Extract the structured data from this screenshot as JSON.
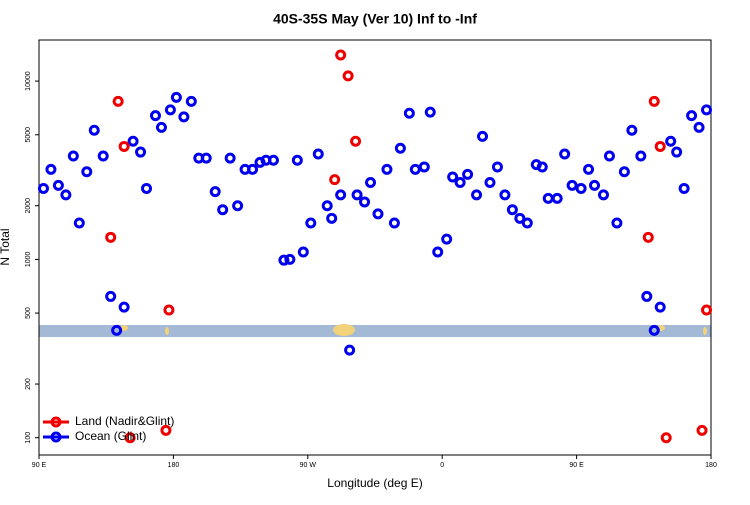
{
  "chart_data": {
    "type": "scatter",
    "title": "40S-35S May (Ver 10)   Inf to -Inf",
    "x_label": "Longitude (deg E)",
    "y_label": "N Total",
    "xlim": [
      90,
      540
    ],
    "xticks": [
      {
        "value": 90,
        "label": "90 E"
      },
      {
        "value": 180,
        "label": "180"
      },
      {
        "value": 270,
        "label": "90 W"
      },
      {
        "value": 360,
        "label": "0"
      },
      {
        "value": 450,
        "label": "90 E"
      },
      {
        "value": 540,
        "label": "180"
      }
    ],
    "ylim": [
      80,
      17000
    ],
    "yticks": [
      100,
      200,
      500,
      1000,
      2000,
      5000,
      10000
    ],
    "log_y": true,
    "legend": "bottom-left",
    "series": [
      {
        "name": "Land (Nadir&Glint)",
        "color": "#ee0000",
        "x": [
          138,
          143,
          147,
          151,
          175,
          177,
          288,
          292,
          297,
          302,
          498,
          502,
          506,
          510,
          534,
          537
        ],
        "values": [
          1330,
          7700,
          4300,
          100,
          110,
          520,
          2800,
          14000,
          10700,
          4600,
          1330,
          7700,
          4300,
          100,
          110,
          520
        ]
      },
      {
        "name": "Ocean (Glint)",
        "color": "#0000ee",
        "x": [
          93,
          98,
          103,
          108,
          113,
          117,
          122,
          127,
          133,
          138,
          142,
          147,
          153,
          158,
          162,
          168,
          172,
          178,
          182,
          187,
          192,
          197,
          202,
          208,
          213,
          218,
          223,
          228,
          233,
          238,
          242,
          247,
          254,
          258,
          263,
          267,
          272,
          277,
          283,
          286,
          292,
          298,
          303,
          308,
          312,
          317,
          323,
          328,
          332,
          338,
          342,
          348,
          352,
          357,
          363,
          367,
          372,
          377,
          383,
          387,
          392,
          397,
          402,
          407,
          412,
          417,
          423,
          427,
          431,
          437,
          442,
          447,
          453,
          458,
          462,
          468,
          472,
          477,
          482,
          487,
          493,
          497,
          502,
          506,
          513,
          517,
          522,
          527,
          532,
          537
        ],
        "values": [
          2500,
          3200,
          2600,
          2300,
          3800,
          1600,
          3100,
          5300,
          3800,
          620,
          400,
          540,
          4600,
          4000,
          2500,
          6400,
          5500,
          6900,
          8100,
          6300,
          7700,
          3700,
          3700,
          2400,
          1900,
          3700,
          2000,
          3200,
          3200,
          3500,
          3600,
          3600,
          990,
          1000,
          3600,
          1100,
          1600,
          3900,
          2000,
          1700,
          2300,
          310,
          2300,
          2100,
          2700,
          1800,
          3200,
          1600,
          4200,
          6600,
          3200,
          3300,
          6700,
          1100,
          1300,
          2900,
          2700,
          3000,
          2300,
          4900,
          2700,
          3300,
          2300,
          1900,
          1700,
          1600,
          3400,
          3300,
          2200,
          2200,
          3900,
          2600,
          2500,
          3200,
          2600,
          2300,
          3800,
          1600,
          3100,
          5300,
          3800,
          620,
          400,
          540,
          4600,
          4000,
          2500,
          6400,
          5500,
          6900
        ]
      }
    ]
  }
}
